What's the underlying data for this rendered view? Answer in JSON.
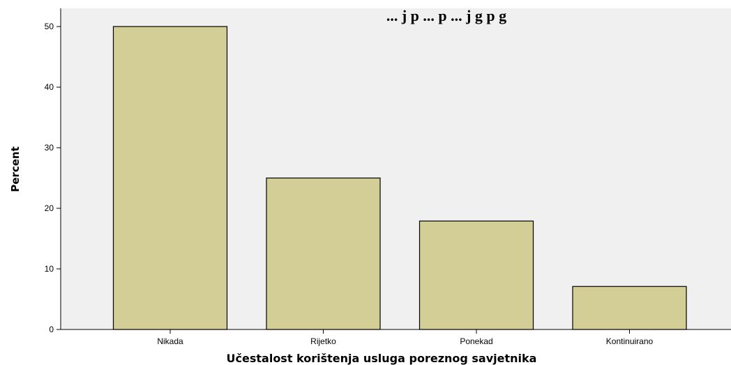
{
  "chart_data": {
    "type": "bar",
    "title": "... j p ... p ... j g p g",
    "categories": [
      "Nikada",
      "Rijetko",
      "Ponekad",
      "Kontinuirano"
    ],
    "values": [
      50.0,
      25.0,
      17.9,
      7.1
    ],
    "xlabel": "Učestalost korištenja usluga poreznog savjetnika",
    "ylabel": "Percent",
    "ylim": [
      0,
      53
    ],
    "yticks": [
      0,
      10,
      20,
      30,
      40,
      50
    ],
    "grid": false,
    "legend": "none",
    "colors": {
      "bar_fill": "#d3ce96",
      "bar_stroke": "#000000",
      "plot_background": "#f0f0f0",
      "axis": "#000000"
    }
  }
}
